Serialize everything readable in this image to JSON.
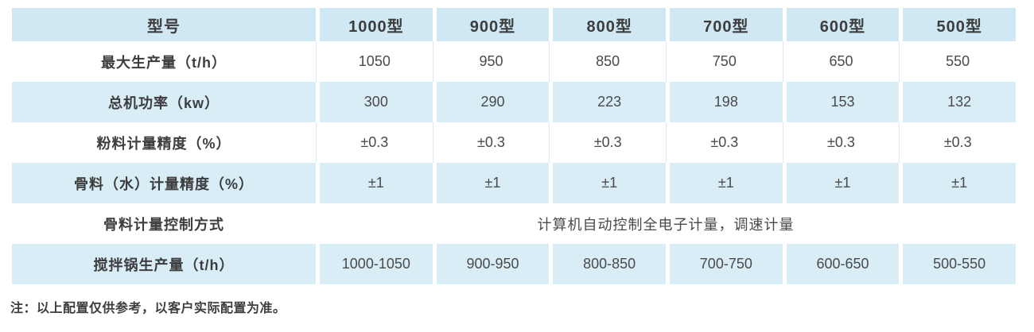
{
  "table": {
    "header": [
      "型号",
      "1000型",
      "900型",
      "800型",
      "700型",
      "600型",
      "500型"
    ],
    "rows": [
      {
        "label": "最大生产量（t/h）",
        "values": [
          "1050",
          "950",
          "850",
          "750",
          "650",
          "550"
        ]
      },
      {
        "label": "总机功率（kw）",
        "values": [
          "300",
          "290",
          "223",
          "198",
          "153",
          "132"
        ]
      },
      {
        "label": "粉料计量精度（%）",
        "values": [
          "±0.3",
          "±0.3",
          "±0.3",
          "±0.3",
          "±0.3",
          "±0.3"
        ]
      },
      {
        "label": "骨料（水）计量精度（%）",
        "values": [
          "±1",
          "±1",
          "±1",
          "±1",
          "±1",
          "±1"
        ]
      },
      {
        "label": "骨料计量控制方式",
        "merged": "计算机自动控制全电子计量，调速计量"
      },
      {
        "label": "搅拌锅生产量（t/h）",
        "values": [
          "1000-1050",
          "900-950",
          "800-850",
          "700-750",
          "600-650",
          "500-550"
        ]
      }
    ]
  },
  "note": "注：以上配置仅供参考，以客户实际配置为准。",
  "colors": {
    "header_bg": "#cfe8f4",
    "row_alt_bg": "#d9edf7",
    "separator_line": "#d8ebf5",
    "text_dark": "#3d3d3d",
    "text_value": "#4a4a4a"
  }
}
